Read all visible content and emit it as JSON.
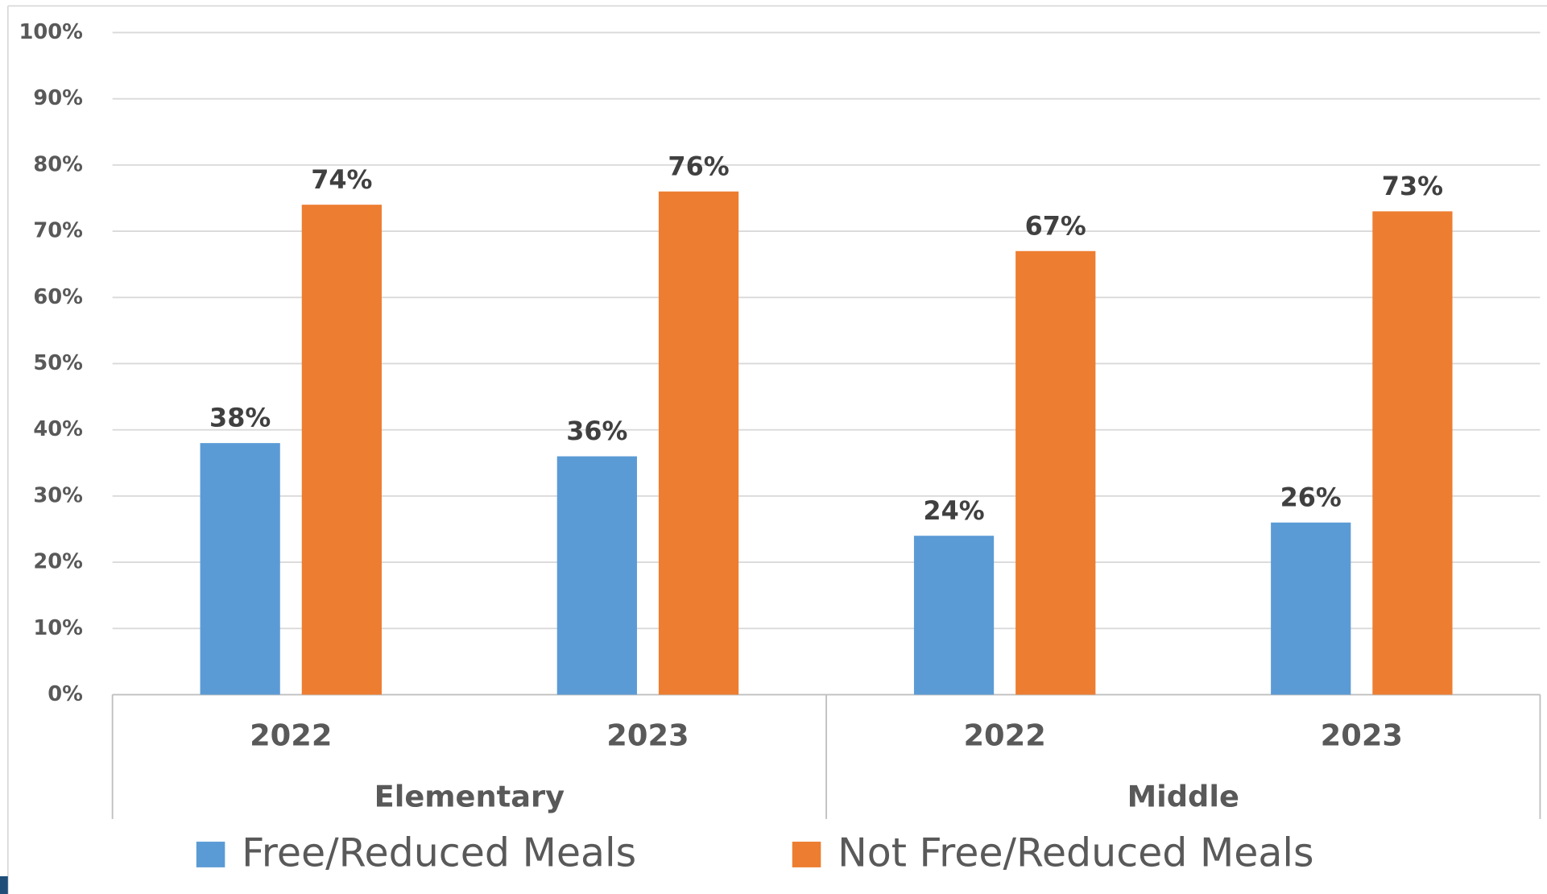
{
  "chart_data": {
    "type": "bar",
    "categories": [
      "2022",
      "2023",
      "2022",
      "2023"
    ],
    "category_groups": [
      "Elementary",
      "Middle"
    ],
    "series": [
      {
        "name": "Free/Reduced Meals",
        "color": "#5b9bd5",
        "values": [
          38,
          36,
          24,
          26
        ],
        "value_labels": [
          "38%",
          "36%",
          "24%",
          "26%"
        ]
      },
      {
        "name": "Not Free/Reduced Meals",
        "color": "#ed7d31",
        "values": [
          74,
          76,
          67,
          73
        ],
        "value_labels": [
          "74%",
          "76%",
          "67%",
          "73%"
        ]
      }
    ],
    "ylim": [
      0,
      100
    ],
    "yticks": [
      {
        "value": 0,
        "label": "0%"
      },
      {
        "value": 10,
        "label": "10%"
      },
      {
        "value": 20,
        "label": "20%"
      },
      {
        "value": 30,
        "label": "30%"
      },
      {
        "value": 40,
        "label": "40%"
      },
      {
        "value": 50,
        "label": "50%"
      },
      {
        "value": 60,
        "label": "60%"
      },
      {
        "value": 70,
        "label": "70%"
      },
      {
        "value": 80,
        "label": "80%"
      },
      {
        "value": 90,
        "label": "90%"
      },
      {
        "value": 100,
        "label": "100%"
      }
    ],
    "grid": true,
    "legend": "bottom"
  }
}
